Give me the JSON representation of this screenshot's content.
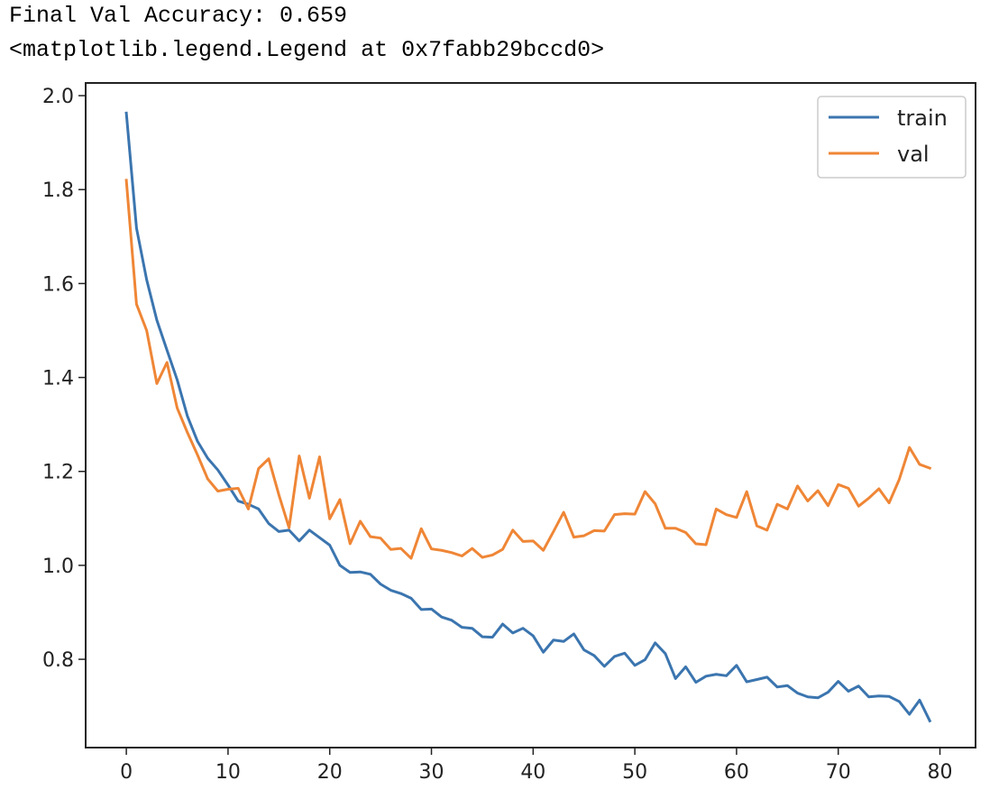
{
  "output": {
    "line1": "Final Val Accuracy: 0.659",
    "line2": "<matplotlib.legend.Legend at 0x7fabb29bccd0>"
  },
  "chart_data": {
    "type": "line",
    "title": "",
    "xlabel": "",
    "ylabel": "",
    "xlim": [
      -4,
      83.5
    ],
    "ylim": [
      0.612,
      2.027
    ],
    "xticks": [
      0,
      10,
      20,
      30,
      40,
      50,
      60,
      70,
      80
    ],
    "yticks": [
      0.8,
      1.0,
      1.2,
      1.4,
      1.6,
      1.8,
      2.0
    ],
    "xtick_labels": [
      "0",
      "10",
      "20",
      "30",
      "40",
      "50",
      "60",
      "70",
      "80"
    ],
    "ytick_labels": [
      "0.8",
      "1.0",
      "1.2",
      "1.4",
      "1.6",
      "1.8",
      "2.0"
    ],
    "grid": false,
    "legend_position": "top-right",
    "x": [
      0,
      1,
      2,
      3,
      4,
      5,
      6,
      7,
      8,
      9,
      10,
      11,
      12,
      13,
      14,
      15,
      16,
      17,
      18,
      19,
      20,
      21,
      22,
      23,
      24,
      25,
      26,
      27,
      28,
      29,
      30,
      31,
      32,
      33,
      34,
      35,
      36,
      37,
      38,
      39,
      40,
      41,
      42,
      43,
      44,
      45,
      46,
      47,
      48,
      49,
      50,
      51,
      52,
      53,
      54,
      55,
      56,
      57,
      58,
      59,
      60,
      61,
      62,
      63,
      64,
      65,
      66,
      67,
      68,
      69,
      70,
      71,
      72,
      73,
      74,
      75,
      76,
      77,
      78,
      79
    ],
    "series": [
      {
        "name": "train",
        "color": "#3b75af",
        "values": [
          1.963,
          1.718,
          1.608,
          1.522,
          1.458,
          1.395,
          1.318,
          1.264,
          1.228,
          1.203,
          1.171,
          1.137,
          1.13,
          1.12,
          1.089,
          1.072,
          1.075,
          1.052,
          1.075,
          1.059,
          1.043,
          1.0,
          0.985,
          0.986,
          0.981,
          0.96,
          0.947,
          0.94,
          0.93,
          0.906,
          0.907,
          0.89,
          0.883,
          0.868,
          0.866,
          0.848,
          0.847,
          0.875,
          0.856,
          0.866,
          0.85,
          0.815,
          0.841,
          0.838,
          0.854,
          0.82,
          0.808,
          0.785,
          0.806,
          0.813,
          0.787,
          0.799,
          0.835,
          0.812,
          0.759,
          0.784,
          0.751,
          0.764,
          0.768,
          0.765,
          0.787,
          0.752,
          0.757,
          0.762,
          0.741,
          0.744,
          0.728,
          0.72,
          0.718,
          0.73,
          0.753,
          0.732,
          0.743,
          0.72,
          0.722,
          0.721,
          0.71,
          0.683,
          0.713,
          0.669
        ]
      },
      {
        "name": "val",
        "color": "#ef8636",
        "values": [
          1.82,
          1.556,
          1.5,
          1.387,
          1.432,
          1.335,
          1.283,
          1.235,
          1.184,
          1.158,
          1.162,
          1.164,
          1.12,
          1.206,
          1.227,
          1.15,
          1.08,
          1.233,
          1.143,
          1.231,
          1.099,
          1.14,
          1.046,
          1.094,
          1.061,
          1.058,
          1.034,
          1.036,
          1.015,
          1.078,
          1.035,
          1.032,
          1.027,
          1.02,
          1.036,
          1.017,
          1.022,
          1.034,
          1.075,
          1.051,
          1.052,
          1.032,
          1.072,
          1.113,
          1.06,
          1.063,
          1.074,
          1.073,
          1.108,
          1.11,
          1.109,
          1.157,
          1.131,
          1.079,
          1.079,
          1.07,
          1.046,
          1.044,
          1.12,
          1.108,
          1.102,
          1.157,
          1.084,
          1.075,
          1.13,
          1.12,
          1.169,
          1.137,
          1.159,
          1.127,
          1.172,
          1.164,
          1.126,
          1.143,
          1.163,
          1.133,
          1.183,
          1.251,
          1.215,
          1.207
        ]
      }
    ]
  }
}
